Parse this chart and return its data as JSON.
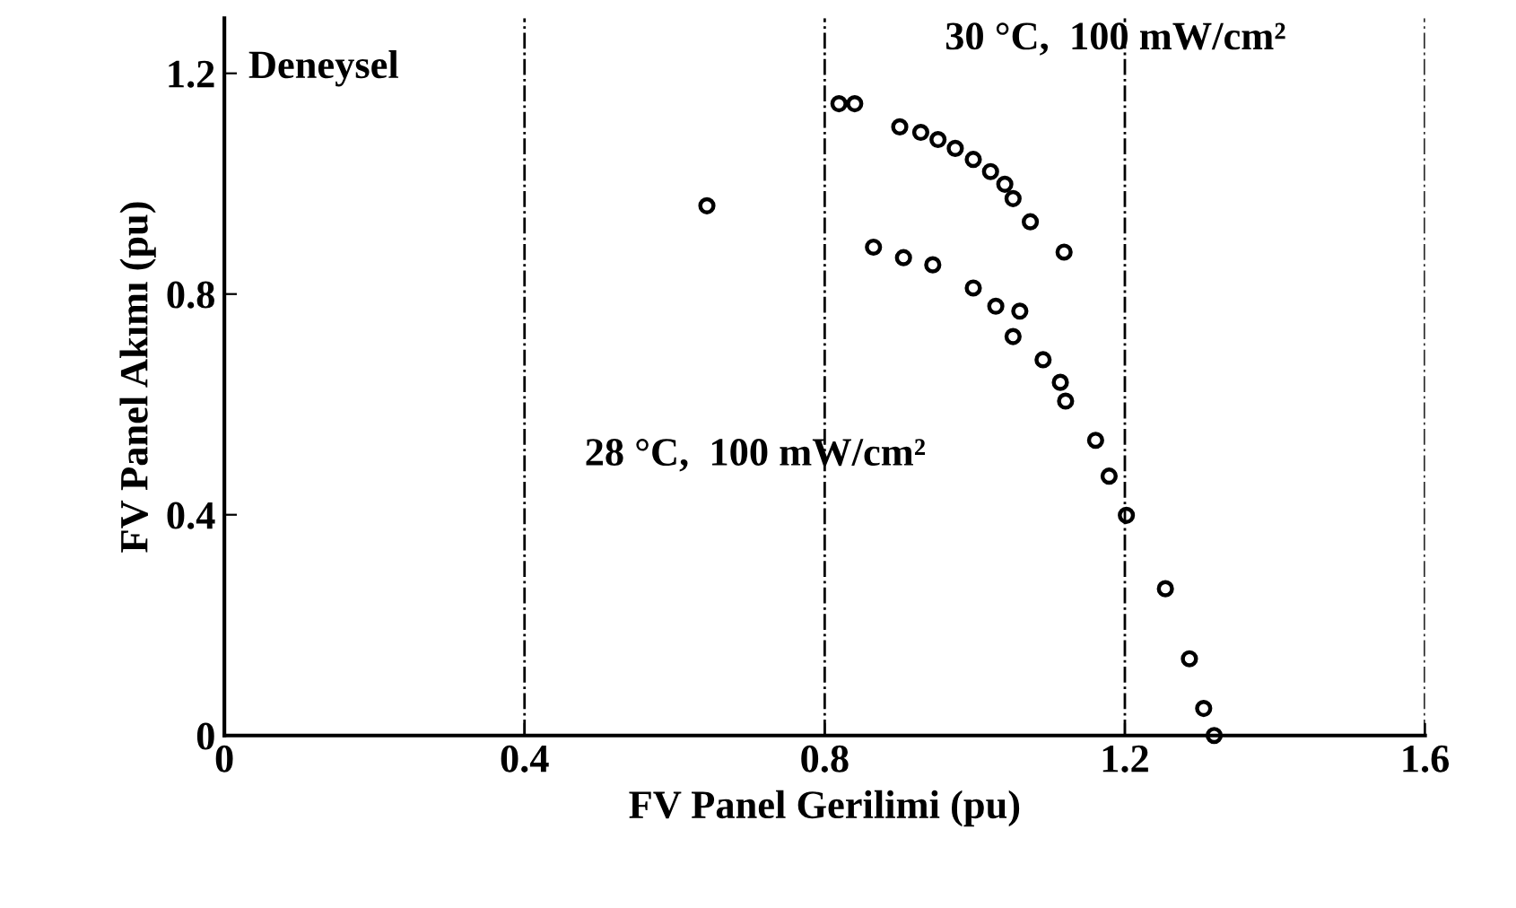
{
  "chart_data": {
    "type": "scatter",
    "xlabel": "FV Panel Gerilimi (pu)",
    "ylabel": "FV Panel Akımı (pu)",
    "xlim": [
      0,
      1.6
    ],
    "ylim": [
      0,
      1.3
    ],
    "xticks": [
      0,
      0.4,
      0.8,
      1.2,
      1.6
    ],
    "yticks": [
      0,
      0.4,
      0.8,
      1.2
    ],
    "grid": "x",
    "marker": "circle",
    "annotations": [
      "Deneysel",
      "30 °C,  100 mW/cm²",
      "28 °C,  100 mW/cm²"
    ],
    "series": [
      {
        "color": "#000000",
        "x": [
          0.819,
          0.84,
          0.9,
          0.928,
          0.951,
          0.974,
          0.998,
          1.021,
          1.04,
          1.051,
          1.074,
          1.119
        ],
        "values": [
          1.145,
          1.145,
          1.103,
          1.093,
          1.08,
          1.064,
          1.044,
          1.022,
          0.999,
          0.973,
          0.931,
          0.876
        ]
      },
      {
        "color": "#000000",
        "x": [
          0.865,
          0.905,
          0.944,
          0.998,
          1.028,
          1.06,
          1.051,
          1.091,
          1.114,
          1.121,
          1.161,
          1.179,
          1.202,
          1.254,
          1.286,
          1.305,
          1.319
        ],
        "values": [
          0.885,
          0.866,
          0.853,
          0.811,
          0.778,
          0.769,
          0.723,
          0.681,
          0.64,
          0.606,
          0.535,
          0.47,
          0.399,
          0.266,
          0.139,
          0.049,
          0.0
        ]
      },
      {
        "color": "#000000",
        "x": [
          0.643
        ],
        "values": [
          0.96
        ]
      }
    ]
  }
}
